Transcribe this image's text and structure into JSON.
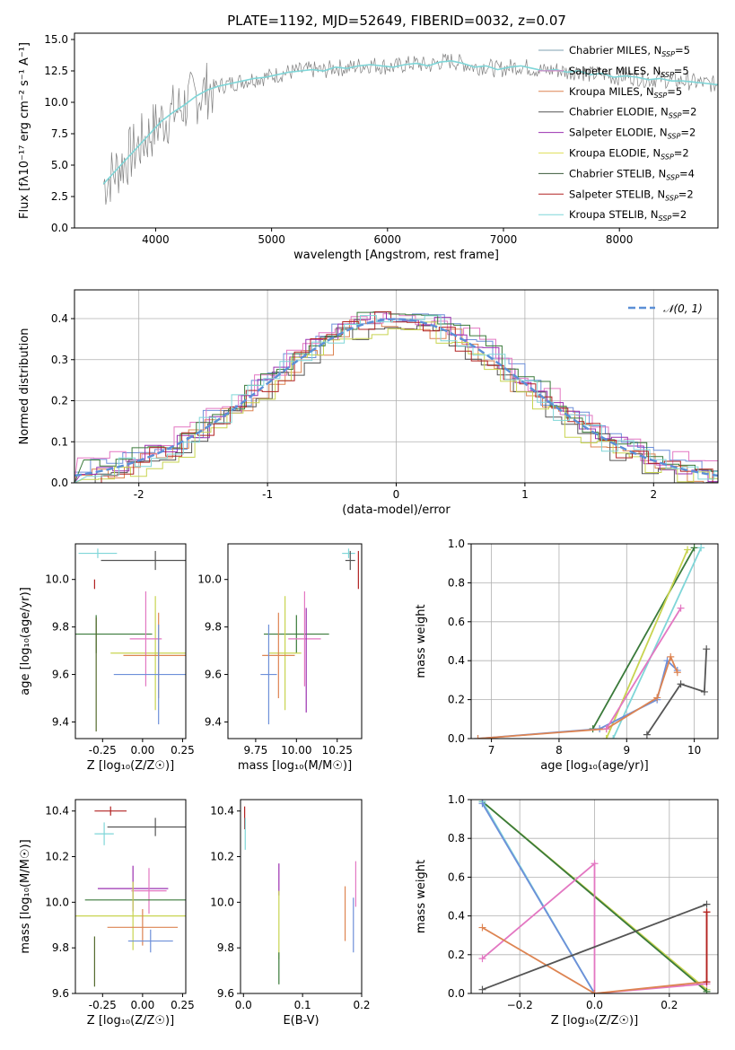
{
  "figure_title": "PLATE=1192, MJD=52649, FIBERID=0032, z=0.07",
  "chart_data": [
    {
      "id": "spectrum",
      "type": "line",
      "title": "PLATE=1192, MJD=52649, FIBERID=0032, z=0.07",
      "xlabel": "wavelength [Angstrom, rest frame]",
      "ylabel": "Flux [fλ10⁻¹⁷ erg cm⁻² s⁻¹ A⁻¹]",
      "xlim": [
        3300,
        8850
      ],
      "ylim": [
        0,
        15.5
      ],
      "xticks": [
        4000,
        5000,
        6000,
        7000,
        8000
      ],
      "yticks": [
        0.0,
        2.5,
        5.0,
        7.5,
        10.0,
        12.5,
        15.0
      ],
      "legend_position": "right",
      "data_series": {
        "name": "data",
        "color": "#7f7f7f",
        "x": [
          3550,
          3650,
          3750,
          3850,
          3950,
          4050,
          4150,
          4250,
          4350,
          4450,
          4550,
          4650,
          4750,
          4850,
          4950,
          5050,
          5150,
          5250,
          5350,
          5450,
          5550,
          5650,
          5750,
          5850,
          5950,
          6050,
          6150,
          6250,
          6350,
          6450,
          6550,
          6650,
          6750,
          6850,
          6950,
          7050,
          7150,
          7250,
          7350,
          7450,
          7550,
          7650,
          7750,
          7850,
          7950,
          8050,
          8150,
          8250,
          8350,
          8450,
          8550,
          8650,
          8750,
          8850
        ],
        "y": [
          3.5,
          4.5,
          5.5,
          6.5,
          7.5,
          8.5,
          9.2,
          9.8,
          10.5,
          11.0,
          11.3,
          11.5,
          11.7,
          11.9,
          12.0,
          12.2,
          12.4,
          12.5,
          12.6,
          12.5,
          12.8,
          12.7,
          12.9,
          13.0,
          12.9,
          12.8,
          13.0,
          13.1,
          12.9,
          13.2,
          13.3,
          13.1,
          12.8,
          12.9,
          12.6,
          12.8,
          12.9,
          12.7,
          12.5,
          12.6,
          12.4,
          12.5,
          12.2,
          12.3,
          12.0,
          12.1,
          12.0,
          11.8,
          11.9,
          11.7,
          11.7,
          11.6,
          11.5,
          11.4
        ]
      },
      "series": [
        {
          "name": "Chabrier MILES, N_SSP=5",
          "label_base": "Chabrier MILES, N",
          "label_n": "=5",
          "color": "#7fa0b0"
        },
        {
          "name": "Salpeter MILES, N_SSP=5",
          "label_base": "Salpeter MILES, N",
          "label_n": "=5",
          "color": "#e377c2"
        },
        {
          "name": "Kroupa MILES, N_SSP=5",
          "label_base": "Kroupa MILES, N",
          "label_n": "=5",
          "color": "#dd8452"
        },
        {
          "name": "Chabrier ELODIE, N_SSP=2",
          "label_base": "Chabrier ELODIE, N",
          "label_n": "=2",
          "color": "#555555"
        },
        {
          "name": "Salpeter ELODIE, N_SSP=2",
          "label_base": "Salpeter ELODIE, N",
          "label_n": "=2",
          "color": "#9b30b0"
        },
        {
          "name": "Kroupa ELODIE, N_SSP=2",
          "label_base": "Kroupa ELODIE, N",
          "label_n": "=2",
          "color": "#e0e060"
        },
        {
          "name": "Chabrier STELIB, N_SSP=4",
          "label_base": "Chabrier STELIB, N",
          "label_n": "=4",
          "color": "#3a5a3a"
        },
        {
          "name": "Salpeter STELIB, N_SSP=2",
          "label_base": "Salpeter STELIB, N",
          "label_n": "=2",
          "color": "#b22222"
        },
        {
          "name": "Kroupa STELIB, N_SSP=2",
          "label_base": "Kroupa STELIB, N",
          "label_n": "=2",
          "color": "#7fd6d8"
        }
      ],
      "model_series_color": "#7fd6d8"
    },
    {
      "id": "residuals",
      "type": "line",
      "xlabel": "(data-model)/error",
      "ylabel": "Normed distribution",
      "xlim": [
        -2.5,
        2.5
      ],
      "ylim": [
        0,
        0.47
      ],
      "xticks": [
        -2,
        -1,
        0,
        1,
        2
      ],
      "yticks": [
        0.0,
        0.1,
        0.2,
        0.3,
        0.4
      ],
      "grid": true,
      "legend_position": "top-right",
      "legend": [
        "𝒩(0, 1)"
      ],
      "gaussian": {
        "mean": 0,
        "sigma": 1,
        "color": "#5b8fd6"
      },
      "histograms": [
        {
          "color": "#6d8fd9",
          "offset": 0.01
        },
        {
          "color": "#dd8452",
          "offset": -0.01
        },
        {
          "color": "#e377c2",
          "offset": 0.02
        },
        {
          "color": "#555555",
          "offset": -0.015
        },
        {
          "color": "#9b30b0",
          "offset": 0.005
        },
        {
          "color": "#c8d450",
          "offset": -0.02
        },
        {
          "color": "#3a7a3a",
          "offset": 0.015
        },
        {
          "color": "#b22222",
          "offset": -0.005
        },
        {
          "color": "#7fd6d8",
          "offset": 0.0
        }
      ]
    },
    {
      "id": "age-vs-z",
      "type": "scatter",
      "xlabel": "Z [log₁₀(Z/Z☉)]",
      "ylabel": "age  [log₁₀(age/yr)]",
      "xlim": [
        -0.42,
        0.27
      ],
      "ylim": [
        9.33,
        10.15
      ],
      "xticks": [
        "-0.25",
        "0.00",
        "0.25"
      ],
      "yticks": [
        "9.4",
        "9.6",
        "9.8",
        "10.0"
      ],
      "points": [
        {
          "x": -0.28,
          "y": 10.11,
          "xerr": 0.12,
          "yerr": 0.02,
          "color": "#7fd6d8"
        },
        {
          "x": 0.08,
          "y": 10.08,
          "xerr": 0.34,
          "yerr": 0.04,
          "color": "#555555"
        },
        {
          "x": -0.3,
          "y": 9.98,
          "xerr": 0.0,
          "yerr": 0.02,
          "color": "#b22222"
        },
        {
          "x": -0.29,
          "y": 9.77,
          "xerr": 0.35,
          "yerr": 0.08,
          "color": "#3a7a3a"
        },
        {
          "x": 0.08,
          "y": 9.69,
          "xerr": 0.28,
          "yerr": 0.24,
          "color": "#c8d450"
        },
        {
          "x": 0.02,
          "y": 9.75,
          "xerr": 0.1,
          "yerr": 0.2,
          "color": "#e377c2"
        },
        {
          "x": 0.1,
          "y": 9.68,
          "xerr": 0.22,
          "yerr": 0.18,
          "color": "#dd8452"
        },
        {
          "x": 0.1,
          "y": 9.6,
          "xerr": 0.28,
          "yerr": 0.21,
          "color": "#6d8fd9"
        },
        {
          "x": -0.29,
          "y": 9.6,
          "xerr": 0.0,
          "yerr": 0.24,
          "color": "#556b2f"
        }
      ]
    },
    {
      "id": "age-vs-mass",
      "type": "scatter",
      "xlabel": "mass [log₁₀(M/M☉)]",
      "ylabel": "",
      "xlim": [
        9.58,
        10.4
      ],
      "ylim": [
        9.33,
        10.15
      ],
      "xticks": [
        "9.75",
        "10.00",
        "10.25"
      ],
      "yticks": [
        "9.4",
        "9.6",
        "9.8",
        "10.0"
      ],
      "points": [
        {
          "x": 10.32,
          "y": 10.11,
          "xerr": 0.04,
          "yerr": 0.02,
          "color": "#7fd6d8"
        },
        {
          "x": 10.33,
          "y": 10.08,
          "xerr": 0.03,
          "yerr": 0.04,
          "color": "#555555"
        },
        {
          "x": 10.38,
          "y": 10.04,
          "xerr": 0.0,
          "yerr": 0.08,
          "color": "#b22222"
        },
        {
          "x": 10.0,
          "y": 9.77,
          "xerr": 0.2,
          "yerr": 0.08,
          "color": "#3a7a3a"
        },
        {
          "x": 9.93,
          "y": 9.69,
          "xerr": 0.1,
          "yerr": 0.24,
          "color": "#c8d450"
        },
        {
          "x": 10.05,
          "y": 9.75,
          "xerr": 0.1,
          "yerr": 0.2,
          "color": "#e377c2"
        },
        {
          "x": 9.89,
          "y": 9.68,
          "xerr": 0.1,
          "yerr": 0.18,
          "color": "#dd8452"
        },
        {
          "x": 9.83,
          "y": 9.6,
          "xerr": 0.05,
          "yerr": 0.21,
          "color": "#6d8fd9"
        },
        {
          "x": 10.06,
          "y": 9.66,
          "xerr": 0.0,
          "yerr": 0.22,
          "color": "#9b30b0"
        }
      ]
    },
    {
      "id": "weight-vs-age",
      "type": "line",
      "xlabel": "age  [log₁₀(age/yr)]",
      "ylabel": "mass weight",
      "xlim": [
        6.7,
        10.35
      ],
      "ylim": [
        0,
        1.0
      ],
      "xticks": [
        7,
        8,
        9,
        10
      ],
      "yticks": [
        0.0,
        0.2,
        0.4,
        0.6,
        0.8,
        1.0
      ],
      "grid": true,
      "series": [
        {
          "color": "#3a7a3a",
          "x": [
            8.5,
            10.0
          ],
          "y": [
            0.05,
            0.98
          ]
        },
        {
          "color": "#c8d450",
          "x": [
            8.7,
            9.9
          ],
          "y": [
            0.0,
            0.97
          ]
        },
        {
          "color": "#7fd6d8",
          "x": [
            8.8,
            10.1
          ],
          "y": [
            0.0,
            0.98
          ]
        },
        {
          "color": "#6d8fd9",
          "x": [
            6.8,
            8.6,
            9.45,
            9.6,
            9.75
          ],
          "y": [
            0.0,
            0.05,
            0.2,
            0.4,
            0.35
          ]
        },
        {
          "color": "#dd8452",
          "x": [
            6.8,
            8.7,
            9.45,
            9.65,
            9.75
          ],
          "y": [
            0.0,
            0.05,
            0.21,
            0.42,
            0.34
          ]
        },
        {
          "color": "#e377c2",
          "x": [
            8.7,
            9.8
          ],
          "y": [
            0.05,
            0.67
          ]
        },
        {
          "color": "#555555",
          "x": [
            9.3,
            9.8,
            10.15,
            10.18
          ],
          "y": [
            0.02,
            0.28,
            0.24,
            0.46
          ]
        }
      ]
    },
    {
      "id": "mass-vs-z",
      "type": "scatter",
      "xlabel": "Z [log₁₀(Z/Z☉)]",
      "ylabel": "mass [log₁₀(M/M☉)]",
      "xlim": [
        -0.42,
        0.27
      ],
      "ylim": [
        9.6,
        10.45
      ],
      "xticks": [
        "-0.25",
        "0.00",
        "0.25"
      ],
      "yticks": [
        "9.6",
        "9.8",
        "10.0",
        "10.2",
        "10.4"
      ],
      "points": [
        {
          "x": -0.2,
          "y": 10.4,
          "xerr": 0.1,
          "yerr": 0.02,
          "color": "#b22222"
        },
        {
          "x": 0.08,
          "y": 10.33,
          "xerr": 0.3,
          "yerr": 0.04,
          "color": "#555555"
        },
        {
          "x": -0.24,
          "y": 10.3,
          "xerr": 0.06,
          "yerr": 0.05,
          "color": "#7fd6d8"
        },
        {
          "x": -0.06,
          "y": 10.06,
          "xerr": 0.22,
          "yerr": 0.1,
          "color": "#9b30b0"
        },
        {
          "x": 0.04,
          "y": 10.05,
          "xerr": 0.11,
          "yerr": 0.1,
          "color": "#e377c2"
        },
        {
          "x": -0.04,
          "y": 10.01,
          "xerr": 0.32,
          "yerr": 0.0,
          "color": "#3a7a3a"
        },
        {
          "x": -0.06,
          "y": 9.94,
          "xerr": 0.36,
          "yerr": 0.15,
          "color": "#c8d450"
        },
        {
          "x": 0.0,
          "y": 9.89,
          "xerr": 0.22,
          "yerr": 0.08,
          "color": "#dd8452"
        },
        {
          "x": 0.05,
          "y": 9.83,
          "xerr": 0.14,
          "yerr": 0.05,
          "color": "#6d8fd9"
        },
        {
          "x": -0.3,
          "y": 9.74,
          "xerr": 0.0,
          "yerr": 0.11,
          "color": "#556b2f"
        }
      ]
    },
    {
      "id": "mass-vs-ebv",
      "type": "scatter",
      "xlabel": "E(B-V)",
      "ylabel": "",
      "xlim": [
        -0.005,
        0.2
      ],
      "ylim": [
        9.6,
        10.45
      ],
      "xticks": [
        "0.0",
        "0.1",
        "0.2"
      ],
      "yticks": [
        "9.6",
        "9.8",
        "10.0",
        "10.2",
        "10.4"
      ],
      "points": [
        {
          "x": 0.002,
          "y": 10.37,
          "xerr": 0,
          "yerr": 0.05,
          "color": "#b22222"
        },
        {
          "x": 0.003,
          "y": 10.3,
          "xerr": 0,
          "yerr": 0.07,
          "color": "#7fd6d8"
        },
        {
          "x": 0.06,
          "y": 10.1,
          "xerr": 0,
          "yerr": 0.07,
          "color": "#9b30b0"
        },
        {
          "x": 0.06,
          "y": 9.9,
          "xerr": 0,
          "yerr": 0.15,
          "color": "#c8d450"
        },
        {
          "x": 0.06,
          "y": 9.71,
          "xerr": 0,
          "yerr": 0.07,
          "color": "#3a7a3a"
        },
        {
          "x": 0.172,
          "y": 9.95,
          "xerr": 0,
          "yerr": 0.12,
          "color": "#dd8452"
        },
        {
          "x": 0.186,
          "y": 9.9,
          "xerr": 0,
          "yerr": 0.12,
          "color": "#6d8fd9"
        },
        {
          "x": 0.19,
          "y": 10.08,
          "xerr": 0,
          "yerr": 0.1,
          "color": "#e377c2"
        }
      ]
    },
    {
      "id": "weight-vs-z",
      "type": "line",
      "xlabel": "Z [log₁₀(Z/Z☉)]",
      "ylabel": "mass weight",
      "xlim": [
        -0.33,
        0.33
      ],
      "ylim": [
        0,
        1.0
      ],
      "xticks": [
        "−0.2",
        "0.0",
        "0.2"
      ],
      "yticks": [
        0.0,
        0.2,
        0.4,
        0.6,
        0.8,
        1.0
      ],
      "grid": true,
      "series": [
        {
          "color": "#c8d450",
          "x": [
            -0.3,
            0.3
          ],
          "y": [
            0.99,
            0.02
          ]
        },
        {
          "color": "#3a7a3a",
          "x": [
            -0.3,
            0.3
          ],
          "y": [
            0.99,
            0.01
          ]
        },
        {
          "color": "#7fd6d8",
          "x": [
            -0.3,
            0.0
          ],
          "y": [
            0.99,
            0.0
          ]
        },
        {
          "color": "#6d8fd9",
          "x": [
            -0.3,
            0.0
          ],
          "y": [
            0.98,
            0.0
          ]
        },
        {
          "color": "#e377c2",
          "x": [
            -0.3,
            0.0,
            0.0,
            0.3
          ],
          "y": [
            0.18,
            0.67,
            0.0,
            0.05
          ]
        },
        {
          "color": "#dd8452",
          "x": [
            -0.3,
            0.0,
            0.3,
            0.3
          ],
          "y": [
            0.34,
            0.0,
            0.06,
            0.42
          ]
        },
        {
          "color": "#555555",
          "x": [
            -0.3,
            0.3
          ],
          "y": [
            0.02,
            0.46
          ]
        },
        {
          "color": "#b22222",
          "x": [
            0.3,
            0.3
          ],
          "y": [
            0.06,
            0.42
          ]
        }
      ]
    }
  ]
}
